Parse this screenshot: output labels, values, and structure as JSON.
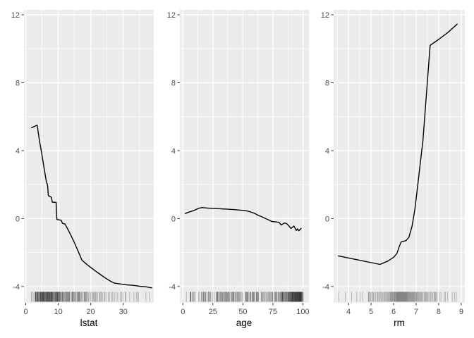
{
  "style": {
    "page_bg": "#FFFFFF",
    "panel_bg": "#EBEBEB",
    "grid": "#FFFFFF",
    "line": "#000000",
    "rug": "#000000",
    "tick_mark": "#333333",
    "tick_label": "#4D4D4D",
    "axis_title": "#000000"
  },
  "chart_data": [
    {
      "type": "line",
      "title": "",
      "xlabel": "lstat",
      "ylabel": "",
      "xlim": [
        -0.55,
        39.4
      ],
      "ylim": [
        -4.96,
        12.29
      ],
      "xticks": [
        0,
        10,
        20,
        30
      ],
      "xticks_minor": [
        5,
        15,
        25,
        35
      ],
      "yticks": [
        -4,
        0,
        4,
        8,
        12
      ],
      "yticks_minor": [
        -2,
        2,
        6,
        10
      ],
      "grid": "on",
      "legend": "none",
      "line": [
        [
          1.8,
          5.35
        ],
        [
          3.5,
          5.5
        ],
        [
          4.2,
          4.6
        ],
        [
          4.9,
          3.85
        ],
        [
          5.4,
          3.25
        ],
        [
          5.8,
          2.8
        ],
        [
          6.1,
          2.45
        ],
        [
          6.4,
          2.1
        ],
        [
          6.6,
          2.05
        ],
        [
          6.75,
          1.9
        ],
        [
          6.95,
          1.35
        ],
        [
          7.9,
          1.25
        ],
        [
          8.15,
          0.97
        ],
        [
          9.35,
          0.95
        ],
        [
          9.55,
          -0.05
        ],
        [
          10.9,
          -0.1
        ],
        [
          11.3,
          -0.28
        ],
        [
          12.1,
          -0.33
        ],
        [
          13,
          -0.65
        ],
        [
          13.8,
          -0.95
        ],
        [
          14.8,
          -1.35
        ],
        [
          15.6,
          -1.7
        ],
        [
          16.4,
          -2.05
        ],
        [
          17.3,
          -2.45
        ],
        [
          18.5,
          -2.65
        ],
        [
          19.8,
          -2.85
        ],
        [
          21.5,
          -3.1
        ],
        [
          23,
          -3.3
        ],
        [
          24.5,
          -3.5
        ],
        [
          26,
          -3.68
        ],
        [
          27.2,
          -3.8
        ],
        [
          29,
          -3.85
        ],
        [
          31,
          -3.9
        ],
        [
          33,
          -3.93
        ],
        [
          35,
          -3.98
        ],
        [
          37,
          -4.02
        ],
        [
          38.8,
          -4.08
        ]
      ],
      "rug": [
        1.73,
        1.98,
        2.47,
        2.87,
        2.96,
        2.98,
        3.01,
        3.11,
        3.13,
        3.26,
        3.33,
        3.54,
        3.57,
        3.59,
        3.7,
        3.73,
        3.76,
        3.81,
        3.95,
        4.03,
        4.14,
        4.21,
        4.32,
        4.45,
        4.5,
        4.56,
        4.59,
        4.63,
        4.69,
        4.74,
        4.81,
        4.84,
        4.97,
        5.03,
        5.12,
        5.19,
        5.21,
        5.28,
        5.29,
        5.33,
        5.39,
        5.49,
        5.5,
        5.57,
        5.64,
        5.68,
        5.7,
        5.81,
        5.91,
        5.98,
        6.07,
        6.15,
        6.21,
        6.27,
        6.36,
        6.43,
        6.48,
        6.56,
        6.58,
        6.65,
        6.72,
        6.73,
        6.86,
        6.87,
        6.93,
        7.01,
        7.1,
        7.12,
        7.2,
        7.26,
        7.34,
        7.39,
        7.44,
        7.51,
        7.56,
        7.67,
        7.73,
        7.79,
        7.83,
        7.88,
        7.9,
        8.01,
        8.05,
        8.1,
        8.2,
        8.26,
        8.3,
        8.43,
        8.47,
        8.61,
        8.77,
        8.81,
        8.93,
        9.04,
        9.08,
        9.16,
        9.25,
        9.32,
        9.42,
        9.47,
        9.52,
        9.62,
        9.69,
        9.71,
        9.74,
        9.8,
        9.88,
        9.97,
        10.11,
        10.16,
        10.21,
        10.26,
        10.3,
        10.45,
        10.5,
        10.58,
        10.63,
        10.87,
        10.97,
        11.12,
        11.25,
        11.32,
        11.38,
        11.45,
        11.66,
        11.69,
        11.97,
        12.03,
        12.27,
        12.34,
        12.43,
        12.5,
        12.64,
        12.8,
        12.87,
        13.0,
        13.09,
        13.22,
        13.35,
        13.44,
        13.51,
        13.61,
        14.1,
        14.27,
        14.33,
        14.36,
        14.59,
        14.69,
        14.81,
        15.02,
        15.12,
        15.17,
        15.39,
        15.7,
        15.84,
        16.03,
        16.14,
        16.21,
        16.35,
        16.44,
        16.51,
        16.65,
        16.9,
        17.09,
        17.27,
        17.6,
        17.93,
        18.06,
        18.13,
        18.33,
        18.46,
        18.66,
        18.8,
        19.01,
        19.31,
        19.77,
        19.92,
        20.32,
        20.62,
        20.85,
        21.14,
        21.32,
        21.45,
        21.7,
        22.11,
        22.6,
        22.74,
        23.09,
        23.27,
        23.6,
        24.16,
        24.39,
        24.91,
        25.41,
        25.79,
        26.42,
        26.77,
        27.26,
        27.8,
        28.32,
        29.05,
        29.55,
        29.93,
        30.59,
        30.81,
        31.99,
        33.28,
        34.02,
        34.37,
        34.77,
        36.98,
        37.97
      ]
    },
    {
      "type": "line",
      "title": "",
      "xlabel": "age",
      "ylabel": "",
      "xlim": [
        -2.5,
        105
      ],
      "ylim": [
        -4.96,
        12.29
      ],
      "xticks": [
        0,
        25,
        50,
        75,
        100
      ],
      "xticks_minor": [
        12.5,
        37.5,
        62.5,
        87.5
      ],
      "yticks": [
        -4,
        0,
        4,
        8,
        12
      ],
      "yticks_minor": [
        -2,
        2,
        6,
        10
      ],
      "grid": "on",
      "legend": "none",
      "line": [
        [
          2,
          0.3
        ],
        [
          5,
          0.38
        ],
        [
          9,
          0.47
        ],
        [
          13,
          0.6
        ],
        [
          16,
          0.65
        ],
        [
          20,
          0.62
        ],
        [
          25,
          0.6
        ],
        [
          30,
          0.58
        ],
        [
          36,
          0.56
        ],
        [
          42,
          0.53
        ],
        [
          47,
          0.5
        ],
        [
          52,
          0.47
        ],
        [
          56,
          0.4
        ],
        [
          60,
          0.3
        ],
        [
          63,
          0.18
        ],
        [
          66,
          0.1
        ],
        [
          69,
          0
        ],
        [
          72,
          -0.1
        ],
        [
          74,
          -0.17
        ],
        [
          78,
          -0.2
        ],
        [
          80,
          -0.22
        ],
        [
          82,
          -0.38
        ],
        [
          84.5,
          -0.26
        ],
        [
          86.5,
          -0.3
        ],
        [
          88.5,
          -0.45
        ],
        [
          90,
          -0.58
        ],
        [
          92.5,
          -0.44
        ],
        [
          94.5,
          -0.7
        ],
        [
          95.5,
          -0.6
        ],
        [
          96.5,
          -0.72
        ],
        [
          97.5,
          -0.65
        ],
        [
          98.5,
          -0.58
        ]
      ],
      "rug": [
        2.9,
        6.0,
        6.2,
        6.5,
        6.6,
        6.8,
        7.8,
        8.4,
        8.9,
        9.8,
        10.0,
        13.0,
        13.9,
        15.3,
        15.8,
        16.1,
        17.0,
        17.2,
        17.5,
        18.4,
        18.5,
        18.8,
        19.1,
        20.1,
        21.1,
        21.4,
        21.9,
        22.3,
        22.9,
        23.3,
        24.8,
        26.3,
        27.7,
        27.9,
        28.4,
        28.8,
        28.9,
        29.1,
        29.7,
        30.2,
        30.8,
        31.1,
        31.5,
        31.9,
        32.0,
        32.2,
        33.0,
        33.2,
        33.5,
        34.1,
        34.5,
        34.9,
        35.4,
        35.7,
        35.9,
        36.1,
        36.6,
        36.9,
        37.2,
        37.8,
        38.1,
        38.3,
        38.5,
        39.0,
        40.0,
        40.3,
        40.5,
        41.1,
        41.5,
        41.9,
        42.2,
        42.4,
        42.6,
        43.4,
        43.7,
        44.4,
        45.0,
        45.4,
        45.8,
        46.3,
        46.7,
        47.2,
        47.6,
        48.2,
        49.1,
        49.7,
        51.8,
        52.3,
        52.5,
        52.9,
        53.2,
        53.6,
        53.7,
        54.2,
        54.4,
        55.1,
        56.0,
        56.1,
        56.4,
        56.7,
        57.8,
        58.1,
        58.4,
        58.5,
        58.7,
        59.1,
        59.6,
        59.7,
        61.1,
        61.4,
        61.5,
        61.8,
        62.0,
        62.5,
        62.8,
        63.1,
        65.2,
        65.4,
        66.1,
        66.5,
        67.0,
        67.6,
        68.1,
        69.1,
        69.6,
        70.4,
        71.0,
        71.6,
        71.9,
        72.5,
        73.1,
        73.5,
        74.3,
        74.5,
        74.8,
        75.0,
        76.5,
        76.7,
        76.9,
        77.3,
        77.8,
        78.1,
        78.3,
        79.2,
        79.7,
        79.9,
        80.3,
        80.8,
        81.3,
        81.6,
        81.7,
        82.0,
        82.5,
        82.6,
        82.8,
        82.9,
        83.0,
        83.2,
        83.4,
        83.5,
        84.0,
        84.1,
        84.5,
        84.6,
        85.1,
        85.4,
        85.7,
        85.9,
        86.1,
        86.3,
        86.5,
        86.9,
        87.3,
        87.4,
        87.6,
        87.9,
        88.0,
        88.2,
        88.4,
        88.5,
        88.8,
        89.0,
        89.1,
        89.3,
        89.5,
        89.8,
        89.9,
        90.0,
        90.2,
        90.3,
        90.4,
        90.7,
        90.8,
        91.0,
        91.1,
        91.2,
        91.3,
        91.4,
        91.6,
        91.7,
        91.8,
        91.9,
        92.1,
        92.2,
        92.4,
        92.6,
        92.7,
        92.9,
        93.0,
        93.1,
        93.3,
        93.4,
        93.5,
        93.6,
        93.8,
        93.9,
        94.0,
        94.1,
        94.3,
        94.4,
        94.6,
        94.7,
        94.8,
        94.9,
        95.0,
        95.2,
        95.3,
        95.4,
        95.6,
        95.7,
        95.8,
        96.0,
        96.1,
        96.2,
        96.3,
        96.4,
        96.6,
        96.7,
        96.8,
        97.0,
        97.1,
        97.2,
        97.3,
        97.4,
        97.5,
        97.7,
        97.8,
        97.9,
        98.0,
        98.1,
        98.2,
        98.3,
        98.4,
        98.5,
        98.7,
        98.8,
        98.9,
        99.1,
        99.3,
        100,
        100,
        100,
        100,
        100,
        100
      ],
      "line_note": ""
    },
    {
      "type": "line",
      "title": "",
      "xlabel": "rm",
      "ylabel": "",
      "xlim": [
        3.34,
        9.16
      ],
      "ylim": [
        -4.96,
        12.29
      ],
      "xticks": [
        4,
        5,
        6,
        7,
        8,
        9
      ],
      "xticks_minor": [
        3.5,
        4.5,
        5.5,
        6.5,
        7.5,
        8.5
      ],
      "yticks": [
        -4,
        0,
        4,
        8,
        12
      ],
      "yticks_minor": [
        -2,
        2,
        6,
        10
      ],
      "grid": "on",
      "legend": "none",
      "line": [
        [
          3.55,
          -2.2
        ],
        [
          4.3,
          -2.4
        ],
        [
          5.4,
          -2.7
        ],
        [
          5.75,
          -2.5
        ],
        [
          6,
          -2.28
        ],
        [
          6.15,
          -2.05
        ],
        [
          6.25,
          -1.65
        ],
        [
          6.33,
          -1.38
        ],
        [
          6.55,
          -1.3
        ],
        [
          6.68,
          -1.1
        ],
        [
          6.82,
          -0.45
        ],
        [
          6.95,
          0.6
        ],
        [
          7.3,
          4.6
        ],
        [
          7.62,
          10.2
        ],
        [
          8,
          10.55
        ],
        [
          8.4,
          10.95
        ],
        [
          8.82,
          11.45
        ]
      ],
      "rug": [
        3.56,
        3.86,
        4.14,
        4.37,
        4.52,
        4.63,
        4.88,
        4.9,
        4.93,
        4.97,
        5.0,
        5.04,
        5.09,
        5.1,
        5.16,
        5.2,
        5.27,
        5.3,
        5.34,
        5.39,
        5.41,
        5.45,
        5.5,
        5.53,
        5.57,
        5.6,
        5.63,
        5.67,
        5.71,
        5.74,
        5.76,
        5.79,
        5.82,
        5.85,
        5.87,
        5.89,
        5.91,
        5.93,
        5.95,
        5.97,
        5.99,
        6.01,
        6.03,
        6.05,
        6.06,
        6.08,
        6.1,
        6.12,
        6.13,
        6.15,
        6.16,
        6.18,
        6.19,
        6.21,
        6.22,
        6.24,
        6.25,
        6.27,
        6.28,
        6.3,
        6.31,
        6.33,
        6.34,
        6.36,
        6.37,
        6.39,
        6.4,
        6.42,
        6.43,
        6.45,
        6.46,
        6.48,
        6.49,
        6.51,
        6.52,
        6.54,
        6.55,
        6.57,
        6.58,
        6.6,
        6.62,
        6.63,
        6.65,
        6.67,
        6.69,
        6.71,
        6.73,
        6.75,
        6.77,
        6.79,
        6.81,
        6.83,
        6.85,
        6.87,
        6.89,
        6.91,
        6.93,
        6.95,
        6.98,
        7.0,
        7.02,
        7.04,
        7.07,
        7.09,
        7.12,
        7.15,
        7.18,
        7.21,
        7.24,
        7.27,
        7.31,
        7.36,
        7.39,
        7.42,
        7.45,
        7.48,
        7.52,
        7.56,
        7.61,
        7.65,
        7.69,
        7.74,
        7.79,
        7.82,
        7.85,
        7.88,
        7.93,
        8.03,
        8.1,
        8.25,
        8.3,
        8.4,
        8.6,
        8.7,
        8.78
      ]
    }
  ]
}
